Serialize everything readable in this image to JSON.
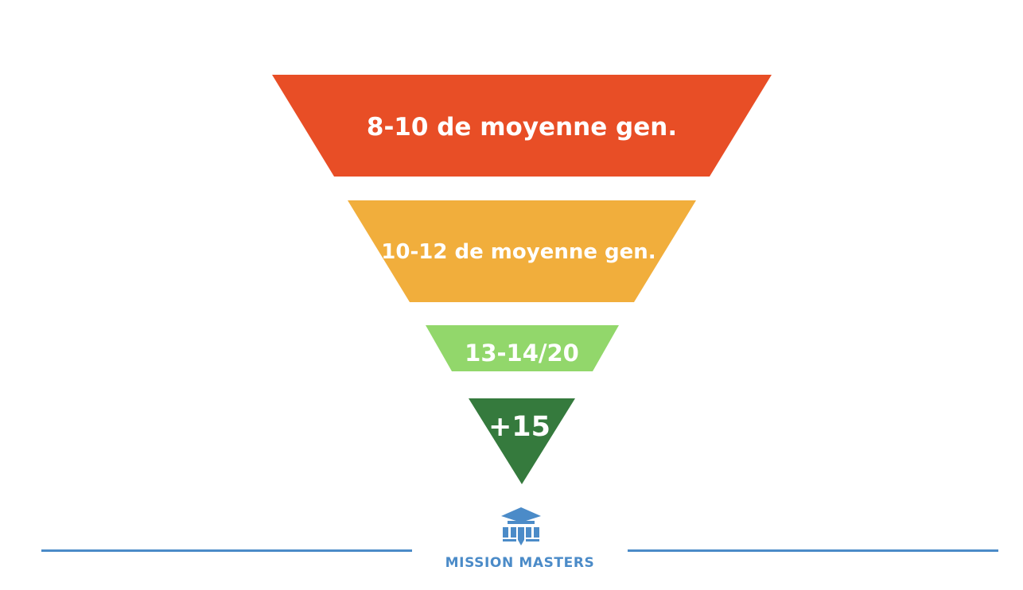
{
  "colors": {
    "level_1": "#e84e26",
    "level_2": "#f1ae3c",
    "level_3": "#92d76b",
    "level_4": "#357a3d",
    "brand": "#4b8bc8",
    "label_text": "#ffffff"
  },
  "funnel": {
    "levels": [
      {
        "label": "8-10 de moyenne gen."
      },
      {
        "label": "10-12 de moyenne gen."
      },
      {
        "label": "13-14/20"
      },
      {
        "label": "+15"
      }
    ]
  },
  "footer": {
    "logo_icon": "graduation-building-icon",
    "brand_name": "MISSION MASTERS"
  }
}
